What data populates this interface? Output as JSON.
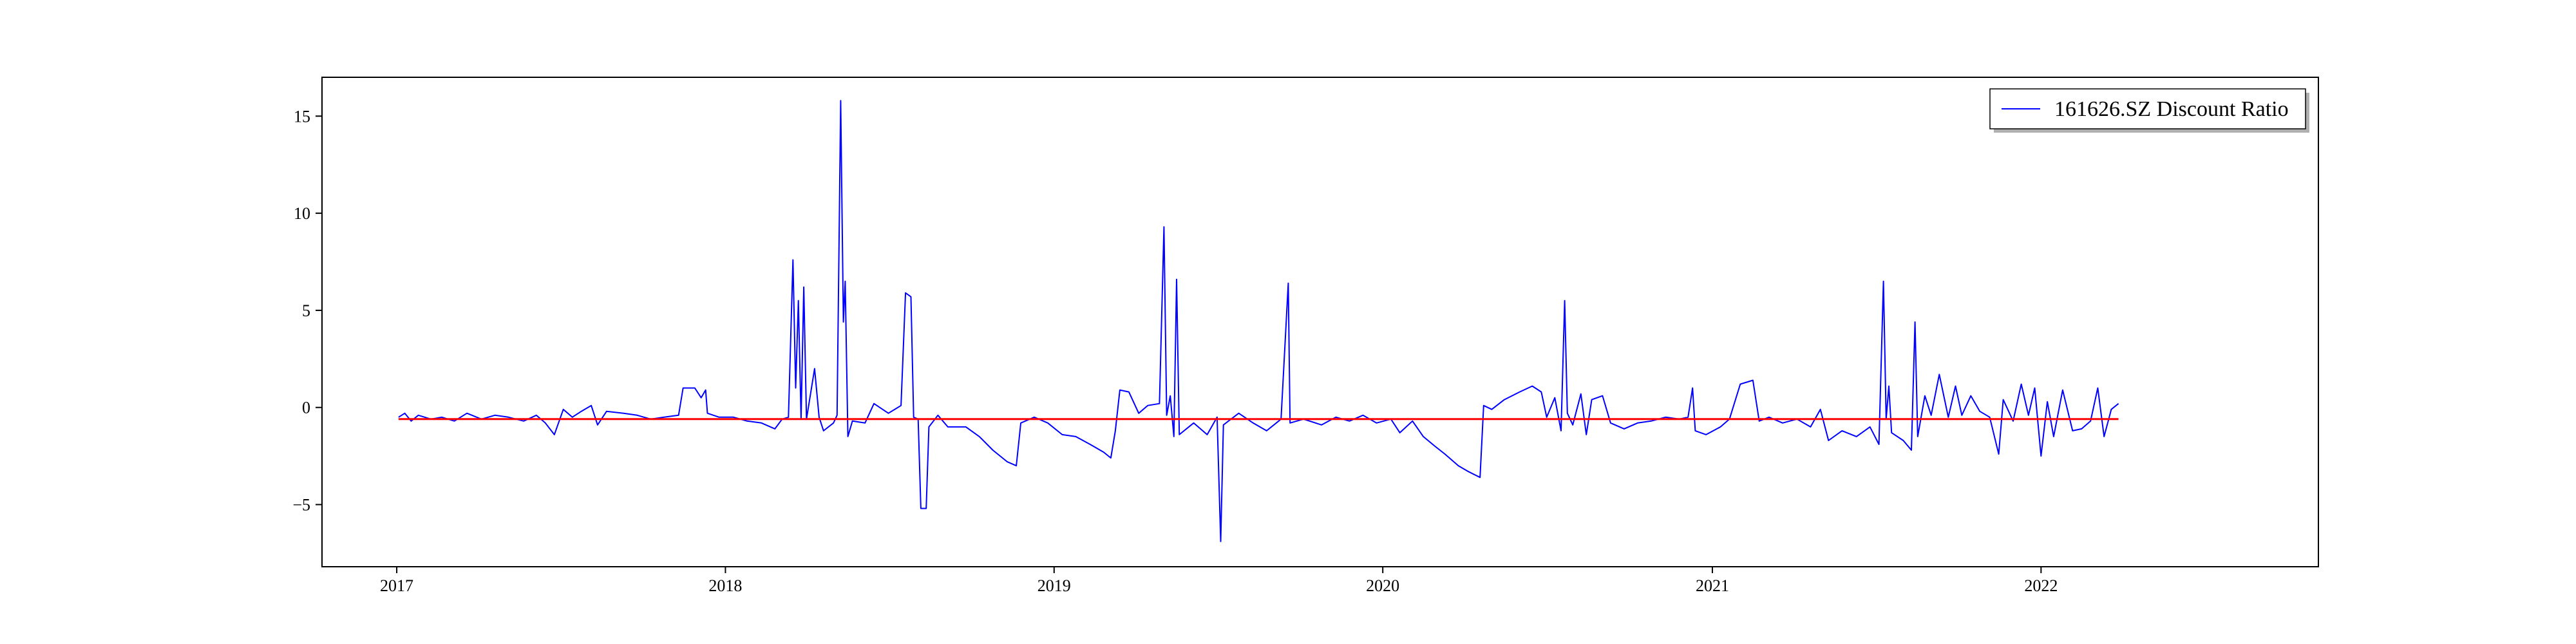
{
  "chart_data": {
    "type": "line",
    "title": "",
    "xlabel": "",
    "ylabel": "",
    "x_ticks": [
      "2017",
      "2018",
      "2019",
      "2020",
      "2021",
      "2022"
    ],
    "y_ticks": [
      -5,
      0,
      5,
      10,
      15
    ],
    "xlim": [
      "2016-10-10",
      "2022-11-05"
    ],
    "ylim": [
      -8.2,
      17.0
    ],
    "grid": false,
    "legend": {
      "position": "top-right"
    },
    "series": [
      {
        "name": "161626.SZ Discount Ratio",
        "color": "#0000ff",
        "points": [
          [
            "2017-01-03",
            -0.5
          ],
          [
            "2017-01-10",
            -0.3
          ],
          [
            "2017-01-17",
            -0.7
          ],
          [
            "2017-01-25",
            -0.4
          ],
          [
            "2017-02-08",
            -0.6
          ],
          [
            "2017-02-20",
            -0.5
          ],
          [
            "2017-03-06",
            -0.7
          ],
          [
            "2017-03-20",
            -0.3
          ],
          [
            "2017-04-05",
            -0.6
          ],
          [
            "2017-04-20",
            -0.4
          ],
          [
            "2017-05-05",
            -0.5
          ],
          [
            "2017-05-22",
            -0.7
          ],
          [
            "2017-06-05",
            -0.4
          ],
          [
            "2017-06-15",
            -0.8
          ],
          [
            "2017-06-25",
            -1.4
          ],
          [
            "2017-07-05",
            -0.1
          ],
          [
            "2017-07-15",
            -0.5
          ],
          [
            "2017-07-25",
            -0.2
          ],
          [
            "2017-08-05",
            0.1
          ],
          [
            "2017-08-12",
            -0.9
          ],
          [
            "2017-08-22",
            -0.2
          ],
          [
            "2017-09-10",
            -0.3
          ],
          [
            "2017-09-25",
            -0.4
          ],
          [
            "2017-10-10",
            -0.6
          ],
          [
            "2017-10-25",
            -0.5
          ],
          [
            "2017-11-10",
            -0.4
          ],
          [
            "2017-11-15",
            1.0
          ],
          [
            "2017-11-28",
            1.0
          ],
          [
            "2017-12-05",
            0.5
          ],
          [
            "2017-12-10",
            0.9
          ],
          [
            "2017-12-12",
            -0.3
          ],
          [
            "2017-12-25",
            -0.5
          ],
          [
            "2018-01-10",
            -0.5
          ],
          [
            "2018-01-25",
            -0.7
          ],
          [
            "2018-02-10",
            -0.8
          ],
          [
            "2018-02-25",
            -1.1
          ],
          [
            "2018-03-05",
            -0.6
          ],
          [
            "2018-03-12",
            -0.5
          ],
          [
            "2018-03-17",
            7.6
          ],
          [
            "2018-03-20",
            1.0
          ],
          [
            "2018-03-23",
            5.5
          ],
          [
            "2018-03-26",
            -0.6
          ],
          [
            "2018-03-29",
            6.2
          ],
          [
            "2018-04-01",
            -0.6
          ],
          [
            "2018-04-10",
            2.0
          ],
          [
            "2018-04-15",
            -0.5
          ],
          [
            "2018-04-20",
            -1.2
          ],
          [
            "2018-05-01",
            -0.8
          ],
          [
            "2018-05-05",
            -0.4
          ],
          [
            "2018-05-09",
            15.8
          ],
          [
            "2018-05-12",
            4.4
          ],
          [
            "2018-05-14",
            6.5
          ],
          [
            "2018-05-17",
            -1.5
          ],
          [
            "2018-05-22",
            -0.7
          ],
          [
            "2018-06-05",
            -0.8
          ],
          [
            "2018-06-15",
            0.2
          ],
          [
            "2018-07-01",
            -0.3
          ],
          [
            "2018-07-15",
            0.1
          ],
          [
            "2018-07-20",
            5.9
          ],
          [
            "2018-07-26",
            5.7
          ],
          [
            "2018-07-29",
            -0.5
          ],
          [
            "2018-08-03",
            -0.6
          ],
          [
            "2018-08-06",
            -5.2
          ],
          [
            "2018-08-12",
            -5.2
          ],
          [
            "2018-08-15",
            -1.0
          ],
          [
            "2018-08-25",
            -0.4
          ],
          [
            "2018-09-05",
            -1.0
          ],
          [
            "2018-09-25",
            -1.0
          ],
          [
            "2018-10-10",
            -1.5
          ],
          [
            "2018-10-25",
            -2.2
          ],
          [
            "2018-11-10",
            -2.8
          ],
          [
            "2018-11-20",
            -3.0
          ],
          [
            "2018-11-25",
            -0.8
          ],
          [
            "2018-12-10",
            -0.5
          ],
          [
            "2018-12-25",
            -0.8
          ],
          [
            "2019-01-10",
            -1.4
          ],
          [
            "2019-01-25",
            -1.5
          ],
          [
            "2019-02-10",
            -1.9
          ],
          [
            "2019-02-25",
            -2.3
          ],
          [
            "2019-03-05",
            -2.6
          ],
          [
            "2019-03-10",
            -1.2
          ],
          [
            "2019-03-15",
            0.9
          ],
          [
            "2019-03-25",
            0.8
          ],
          [
            "2019-04-05",
            -0.3
          ],
          [
            "2019-04-15",
            0.1
          ],
          [
            "2019-04-28",
            0.2
          ],
          [
            "2019-05-03",
            9.3
          ],
          [
            "2019-05-06",
            -0.4
          ],
          [
            "2019-05-10",
            0.6
          ],
          [
            "2019-05-14",
            -1.5
          ],
          [
            "2019-05-17",
            6.6
          ],
          [
            "2019-05-20",
            -1.4
          ],
          [
            "2019-06-05",
            -0.8
          ],
          [
            "2019-06-20",
            -1.4
          ],
          [
            "2019-07-01",
            -0.5
          ],
          [
            "2019-07-05",
            -6.9
          ],
          [
            "2019-07-08",
            -0.9
          ],
          [
            "2019-07-25",
            -0.3
          ],
          [
            "2019-08-10",
            -0.8
          ],
          [
            "2019-08-25",
            -1.2
          ],
          [
            "2019-09-10",
            -0.6
          ],
          [
            "2019-09-18",
            6.4
          ],
          [
            "2019-09-20",
            -0.8
          ],
          [
            "2019-10-05",
            -0.6
          ],
          [
            "2019-10-25",
            -0.9
          ],
          [
            "2019-11-10",
            -0.5
          ],
          [
            "2019-11-25",
            -0.7
          ],
          [
            "2019-12-10",
            -0.4
          ],
          [
            "2019-12-25",
            -0.8
          ],
          [
            "2020-01-10",
            -0.6
          ],
          [
            "2020-01-20",
            -1.3
          ],
          [
            "2020-02-03",
            -0.7
          ],
          [
            "2020-02-15",
            -1.5
          ],
          [
            "2020-02-28",
            -2.0
          ],
          [
            "2020-03-10",
            -2.4
          ],
          [
            "2020-03-25",
            -3.0
          ],
          [
            "2020-04-05",
            -3.3
          ],
          [
            "2020-04-18",
            -3.6
          ],
          [
            "2020-04-22",
            0.1
          ],
          [
            "2020-05-01",
            -0.1
          ],
          [
            "2020-05-15",
            0.4
          ],
          [
            "2020-06-01",
            0.8
          ],
          [
            "2020-06-15",
            1.1
          ],
          [
            "2020-06-25",
            0.8
          ],
          [
            "2020-07-01",
            -0.5
          ],
          [
            "2020-07-10",
            0.5
          ],
          [
            "2020-07-17",
            -1.2
          ],
          [
            "2020-07-21",
            5.5
          ],
          [
            "2020-07-24",
            -0.3
          ],
          [
            "2020-07-30",
            -0.9
          ],
          [
            "2020-08-08",
            0.7
          ],
          [
            "2020-08-14",
            -1.4
          ],
          [
            "2020-08-20",
            0.4
          ],
          [
            "2020-09-01",
            0.6
          ],
          [
            "2020-09-10",
            -0.8
          ],
          [
            "2020-09-25",
            -1.1
          ],
          [
            "2020-10-10",
            -0.8
          ],
          [
            "2020-10-25",
            -0.7
          ],
          [
            "2020-11-10",
            -0.5
          ],
          [
            "2020-11-25",
            -0.6
          ],
          [
            "2020-12-05",
            -0.5
          ],
          [
            "2020-12-10",
            1.0
          ],
          [
            "2020-12-13",
            -1.2
          ],
          [
            "2020-12-25",
            -1.4
          ],
          [
            "2021-01-10",
            -1.0
          ],
          [
            "2021-01-20",
            -0.6
          ],
          [
            "2021-02-01",
            1.2
          ],
          [
            "2021-02-15",
            1.4
          ],
          [
            "2021-02-22",
            -0.7
          ],
          [
            "2021-03-05",
            -0.5
          ],
          [
            "2021-03-20",
            -0.8
          ],
          [
            "2021-04-05",
            -0.6
          ],
          [
            "2021-04-20",
            -1.0
          ],
          [
            "2021-05-01",
            -0.1
          ],
          [
            "2021-05-10",
            -1.7
          ],
          [
            "2021-05-25",
            -1.2
          ],
          [
            "2021-06-10",
            -1.5
          ],
          [
            "2021-06-25",
            -1.0
          ],
          [
            "2021-07-05",
            -1.9
          ],
          [
            "2021-07-10",
            6.5
          ],
          [
            "2021-07-13",
            -0.6
          ],
          [
            "2021-07-16",
            1.1
          ],
          [
            "2021-07-19",
            -1.3
          ],
          [
            "2021-08-01",
            -1.7
          ],
          [
            "2021-08-10",
            -2.2
          ],
          [
            "2021-08-14",
            4.4
          ],
          [
            "2021-08-17",
            -1.5
          ],
          [
            "2021-08-25",
            0.6
          ],
          [
            "2021-09-01",
            -0.4
          ],
          [
            "2021-09-10",
            1.7
          ],
          [
            "2021-09-20",
            -0.5
          ],
          [
            "2021-09-28",
            1.1
          ],
          [
            "2021-10-05",
            -0.4
          ],
          [
            "2021-10-15",
            0.6
          ],
          [
            "2021-10-25",
            -0.2
          ],
          [
            "2021-11-05",
            -0.5
          ],
          [
            "2021-11-15",
            -2.4
          ],
          [
            "2021-11-20",
            0.4
          ],
          [
            "2021-12-01",
            -0.7
          ],
          [
            "2021-12-10",
            1.2
          ],
          [
            "2021-12-18",
            -0.4
          ],
          [
            "2021-12-25",
            1.0
          ],
          [
            "2022-01-01",
            -2.5
          ],
          [
            "2022-01-08",
            0.3
          ],
          [
            "2022-01-15",
            -1.5
          ],
          [
            "2022-01-25",
            0.9
          ],
          [
            "2022-02-05",
            -1.2
          ],
          [
            "2022-02-15",
            -1.1
          ],
          [
            "2022-02-25",
            -0.7
          ],
          [
            "2022-03-05",
            1.0
          ],
          [
            "2022-03-12",
            -1.5
          ],
          [
            "2022-03-20",
            -0.1
          ],
          [
            "2022-03-28",
            0.2
          ]
        ]
      }
    ],
    "reference_line": {
      "value": -0.6,
      "color": "#ff0000",
      "x_start": "2017-01-03",
      "x_end": "2022-03-28"
    }
  }
}
